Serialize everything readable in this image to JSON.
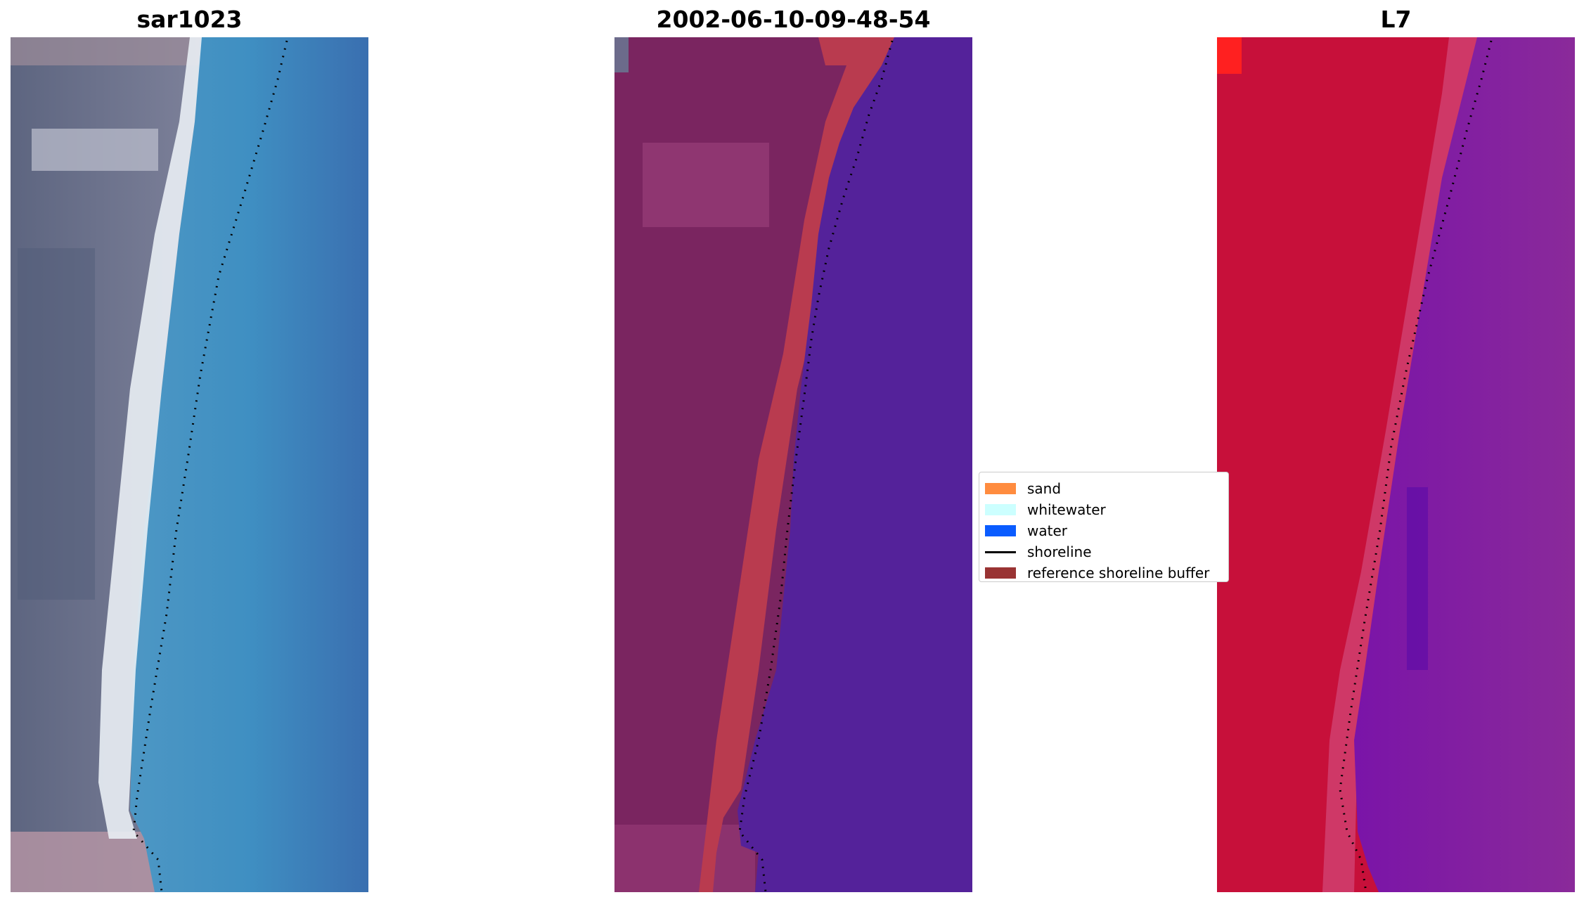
{
  "panels": [
    {
      "title": "sar1023",
      "kind": "rgb"
    },
    {
      "title": "2002-06-10-09-48-54",
      "kind": "classified"
    },
    {
      "title": "L7",
      "kind": "false-color"
    }
  ],
  "legend": {
    "items": [
      {
        "label": "sand",
        "color": "#ff8c3f",
        "type": "patch"
      },
      {
        "label": "whitewater",
        "color": "#ccffff",
        "type": "patch"
      },
      {
        "label": "water",
        "color": "#0a5cff",
        "type": "patch"
      },
      {
        "label": "shoreline",
        "color": "#000000",
        "type": "line"
      },
      {
        "label": "reference shoreline buffer",
        "color": "#993333",
        "type": "patch"
      }
    ]
  }
}
